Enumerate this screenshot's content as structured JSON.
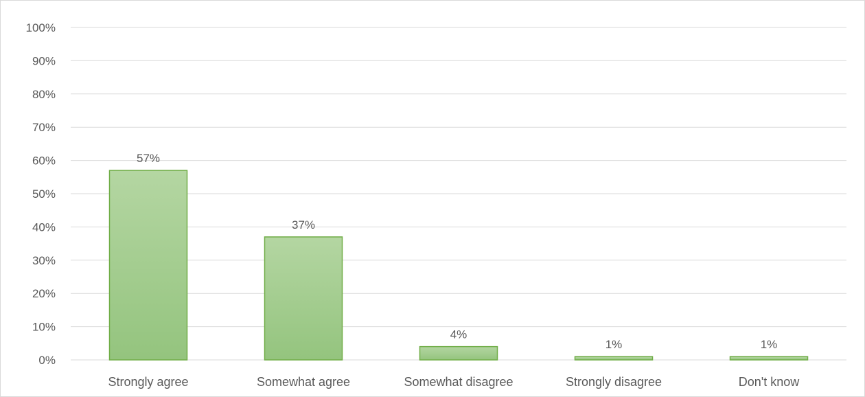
{
  "chart_data": {
    "type": "bar",
    "categories": [
      "Strongly agree",
      "Somewhat agree",
      "Somewhat disagree",
      "Strongly disagree",
      "Don't know"
    ],
    "values": [
      57,
      37,
      4,
      1,
      1
    ],
    "data_labels": [
      "57%",
      "37%",
      "4%",
      "1%",
      "1%"
    ],
    "y_ticks": [
      "0%",
      "10%",
      "20%",
      "30%",
      "40%",
      "50%",
      "60%",
      "70%",
      "80%",
      "90%",
      "100%"
    ],
    "ylim": [
      0,
      100
    ],
    "grid": true,
    "legend": "none",
    "colors": {
      "bar_fill_top": "#b4d6a2",
      "bar_fill_bottom": "#94c47e",
      "bar_stroke": "#70ad47",
      "grid": "#d9d9d9",
      "text": "#595959"
    }
  }
}
